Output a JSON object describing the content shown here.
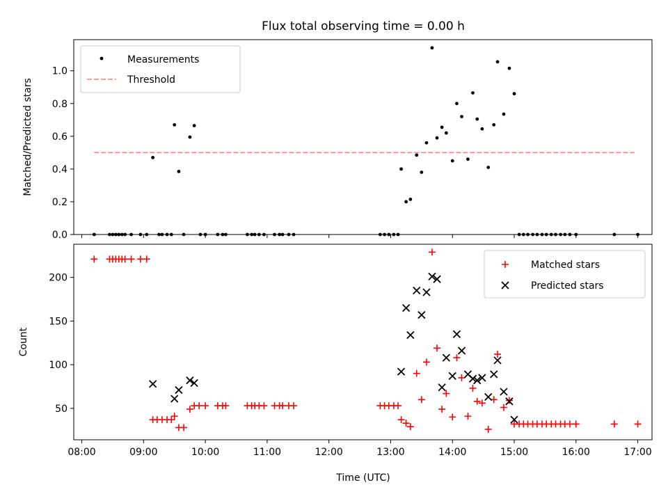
{
  "chart_data": {
    "title": "Flux total observing time = 0.00 h",
    "xlabel": "Time (UTC)",
    "x_tick_labels": [
      "08:00",
      "09:00",
      "10:00",
      "11:00",
      "12:00",
      "13:00",
      "14:00",
      "15:00",
      "16:00",
      "17:00"
    ],
    "x_tick_hours": [
      8,
      9,
      10,
      11,
      12,
      13,
      14,
      15,
      16,
      17
    ],
    "xlim_hours": [
      7.87,
      17.23
    ],
    "colors": {
      "measurements": "#000000",
      "threshold": "#ff7f7f",
      "matched": "#ff0000",
      "predicted": "#000000"
    },
    "panels": [
      {
        "type": "scatter",
        "ylabel": "Matched/Predicted stars",
        "ylim": [
          0,
          1.19
        ],
        "y_ticks": [
          0.0,
          0.2,
          0.4,
          0.6,
          0.8,
          1.0
        ],
        "y_tick_labels": [
          "0.0",
          "0.2",
          "0.4",
          "0.6",
          "0.8",
          "1.0"
        ],
        "legend": {
          "position": "upper left",
          "measurements_label": "Measurements",
          "threshold_label": "Threshold"
        },
        "threshold": {
          "value": 0.5,
          "x_start": 8.2,
          "x_end": 16.95
        },
        "measurements": [
          [
            8.2,
            0
          ],
          [
            8.45,
            0
          ],
          [
            8.5,
            0
          ],
          [
            8.55,
            0
          ],
          [
            8.6,
            0
          ],
          [
            8.65,
            0
          ],
          [
            8.7,
            0
          ],
          [
            8.8,
            0
          ],
          [
            8.95,
            0
          ],
          [
            9.05,
            0
          ],
          [
            9.15,
            0.47
          ],
          [
            9.25,
            0
          ],
          [
            9.3,
            0
          ],
          [
            9.38,
            0
          ],
          [
            9.45,
            0
          ],
          [
            9.5,
            0.67
          ],
          [
            9.57,
            0.385
          ],
          [
            9.65,
            0
          ],
          [
            9.75,
            0.595
          ],
          [
            9.82,
            0.665
          ],
          [
            9.92,
            0
          ],
          [
            10.0,
            0
          ],
          [
            10.2,
            0
          ],
          [
            10.28,
            0
          ],
          [
            10.33,
            0
          ],
          [
            10.68,
            0
          ],
          [
            10.75,
            0
          ],
          [
            10.8,
            0
          ],
          [
            10.87,
            0
          ],
          [
            10.95,
            0
          ],
          [
            11.12,
            0
          ],
          [
            11.2,
            0
          ],
          [
            11.25,
            0
          ],
          [
            11.35,
            0
          ],
          [
            11.43,
            0
          ],
          [
            12.83,
            0
          ],
          [
            12.9,
            0
          ],
          [
            12.97,
            0
          ],
          [
            13.05,
            0
          ],
          [
            13.12,
            0
          ],
          [
            13.17,
            0.4
          ],
          [
            13.25,
            0.2
          ],
          [
            13.32,
            0.215
          ],
          [
            13.42,
            0.485
          ],
          [
            13.5,
            0.38
          ],
          [
            13.58,
            0.56
          ],
          [
            13.67,
            1.14
          ],
          [
            13.75,
            0.59
          ],
          [
            13.83,
            0.655
          ],
          [
            13.9,
            0.62
          ],
          [
            14.0,
            0.45
          ],
          [
            14.07,
            0.8
          ],
          [
            14.15,
            0.72
          ],
          [
            14.25,
            0.46
          ],
          [
            14.33,
            0.865
          ],
          [
            14.4,
            0.705
          ],
          [
            14.48,
            0.645
          ],
          [
            14.58,
            0.41
          ],
          [
            14.67,
            0.67
          ],
          [
            14.73,
            1.055
          ],
          [
            14.83,
            0.735
          ],
          [
            14.92,
            1.015
          ],
          [
            15.0,
            0.86
          ],
          [
            15.08,
            0
          ],
          [
            15.15,
            0
          ],
          [
            15.22,
            0
          ],
          [
            15.3,
            0
          ],
          [
            15.37,
            0
          ],
          [
            15.45,
            0
          ],
          [
            15.52,
            0
          ],
          [
            15.6,
            0
          ],
          [
            15.67,
            0
          ],
          [
            15.75,
            0
          ],
          [
            15.82,
            0
          ],
          [
            15.9,
            0
          ],
          [
            16.0,
            0
          ],
          [
            16.62,
            0
          ],
          [
            17.0,
            0
          ]
        ]
      },
      {
        "type": "scatter",
        "ylabel": "Count",
        "ylim": [
          14,
          238
        ],
        "y_ticks": [
          50,
          100,
          150,
          200
        ],
        "y_tick_labels": [
          "50",
          "100",
          "150",
          "200"
        ],
        "legend": {
          "position": "upper right",
          "matched_label": "Matched stars",
          "predicted_label": "Predicted stars"
        },
        "matched": [
          [
            8.2,
            221
          ],
          [
            8.45,
            221
          ],
          [
            8.5,
            221
          ],
          [
            8.55,
            221
          ],
          [
            8.6,
            221
          ],
          [
            8.65,
            221
          ],
          [
            8.7,
            221
          ],
          [
            8.8,
            221
          ],
          [
            8.95,
            221
          ],
          [
            9.05,
            221
          ],
          [
            9.15,
            37
          ],
          [
            9.22,
            37
          ],
          [
            9.3,
            37
          ],
          [
            9.38,
            37
          ],
          [
            9.45,
            37
          ],
          [
            9.5,
            41
          ],
          [
            9.57,
            28
          ],
          [
            9.65,
            28
          ],
          [
            9.75,
            49
          ],
          [
            9.82,
            53
          ],
          [
            9.9,
            53
          ],
          [
            10.0,
            53
          ],
          [
            10.2,
            53
          ],
          [
            10.28,
            53
          ],
          [
            10.33,
            53
          ],
          [
            10.68,
            53
          ],
          [
            10.75,
            53
          ],
          [
            10.8,
            53
          ],
          [
            10.87,
            53
          ],
          [
            10.95,
            53
          ],
          [
            11.12,
            53
          ],
          [
            11.2,
            53
          ],
          [
            11.25,
            53
          ],
          [
            11.35,
            53
          ],
          [
            11.43,
            53
          ],
          [
            12.83,
            53
          ],
          [
            12.9,
            53
          ],
          [
            12.97,
            53
          ],
          [
            13.05,
            53
          ],
          [
            13.12,
            53
          ],
          [
            13.17,
            37
          ],
          [
            13.25,
            33
          ],
          [
            13.32,
            29
          ],
          [
            13.42,
            90
          ],
          [
            13.5,
            60
          ],
          [
            13.58,
            103
          ],
          [
            13.67,
            229
          ],
          [
            13.75,
            119
          ],
          [
            13.83,
            49
          ],
          [
            13.9,
            67
          ],
          [
            14.0,
            40
          ],
          [
            14.07,
            108
          ],
          [
            14.15,
            85
          ],
          [
            14.25,
            41
          ],
          [
            14.33,
            73
          ],
          [
            14.4,
            58
          ],
          [
            14.48,
            56
          ],
          [
            14.58,
            26
          ],
          [
            14.67,
            60
          ],
          [
            14.73,
            112
          ],
          [
            14.83,
            51
          ],
          [
            14.92,
            59
          ],
          [
            15.0,
            32
          ],
          [
            15.08,
            32
          ],
          [
            15.15,
            32
          ],
          [
            15.22,
            32
          ],
          [
            15.3,
            32
          ],
          [
            15.37,
            32
          ],
          [
            15.45,
            32
          ],
          [
            15.52,
            32
          ],
          [
            15.6,
            32
          ],
          [
            15.67,
            32
          ],
          [
            15.75,
            32
          ],
          [
            15.82,
            32
          ],
          [
            15.9,
            32
          ],
          [
            16.0,
            32
          ],
          [
            16.62,
            32
          ],
          [
            17.0,
            32
          ]
        ],
        "predicted": [
          [
            9.15,
            78
          ],
          [
            9.5,
            61
          ],
          [
            9.57,
            71
          ],
          [
            9.75,
            82
          ],
          [
            9.82,
            79
          ],
          [
            13.17,
            92
          ],
          [
            13.25,
            165
          ],
          [
            13.32,
            134
          ],
          [
            13.42,
            185
          ],
          [
            13.5,
            157
          ],
          [
            13.58,
            183
          ],
          [
            13.67,
            201
          ],
          [
            13.75,
            198
          ],
          [
            13.83,
            74
          ],
          [
            13.9,
            108
          ],
          [
            14.0,
            87
          ],
          [
            14.07,
            135
          ],
          [
            14.15,
            116
          ],
          [
            14.25,
            89
          ],
          [
            14.33,
            84
          ],
          [
            14.4,
            82
          ],
          [
            14.48,
            85
          ],
          [
            14.58,
            63
          ],
          [
            14.67,
            89
          ],
          [
            14.73,
            105
          ],
          [
            14.83,
            69
          ],
          [
            14.92,
            58
          ],
          [
            15.0,
            37
          ]
        ]
      }
    ]
  }
}
